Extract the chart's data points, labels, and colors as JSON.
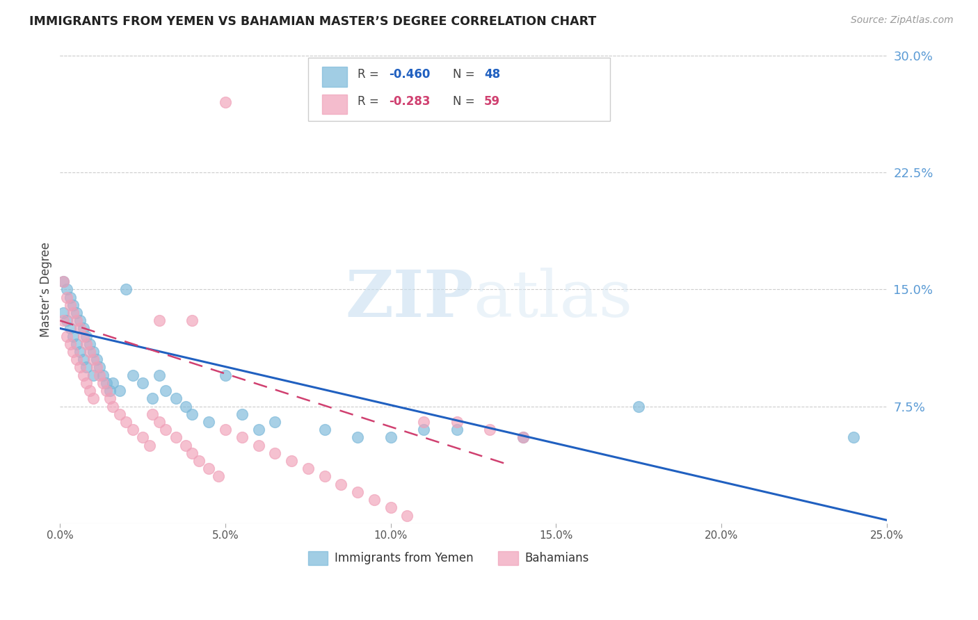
{
  "title": "IMMIGRANTS FROM YEMEN VS BAHAMIAN MASTER’S DEGREE CORRELATION CHART",
  "source": "Source: ZipAtlas.com",
  "ylabel": "Master’s Degree",
  "right_yticks": [
    "30.0%",
    "22.5%",
    "15.0%",
    "7.5%"
  ],
  "right_ytick_vals": [
    0.3,
    0.225,
    0.15,
    0.075
  ],
  "xlim": [
    0.0,
    0.25
  ],
  "ylim": [
    0.0,
    0.3
  ],
  "xticks": [
    0.0,
    0.05,
    0.1,
    0.15,
    0.2,
    0.25
  ],
  "xticklabels": [
    "0.0%",
    "5.0%",
    "10.0%",
    "15.0%",
    "20.0%",
    "25.0%"
  ],
  "legend_blue_r": "-0.460",
  "legend_blue_n": "48",
  "legend_pink_r": "-0.283",
  "legend_pink_n": "59",
  "legend_blue_label": "Immigrants from Yemen",
  "legend_pink_label": "Bahamians",
  "blue_color": "#7ab8d9",
  "pink_color": "#f0a0b8",
  "trend_blue_color": "#2060c0",
  "trend_pink_color": "#d04070",
  "blue_scatter_x": [
    0.001,
    0.001,
    0.002,
    0.002,
    0.003,
    0.003,
    0.004,
    0.004,
    0.005,
    0.005,
    0.006,
    0.006,
    0.007,
    0.007,
    0.008,
    0.008,
    0.009,
    0.01,
    0.01,
    0.011,
    0.012,
    0.013,
    0.014,
    0.015,
    0.016,
    0.018,
    0.02,
    0.022,
    0.025,
    0.028,
    0.03,
    0.032,
    0.035,
    0.038,
    0.04,
    0.045,
    0.05,
    0.055,
    0.06,
    0.065,
    0.08,
    0.09,
    0.1,
    0.11,
    0.12,
    0.14,
    0.175,
    0.24
  ],
  "blue_scatter_y": [
    0.155,
    0.135,
    0.15,
    0.13,
    0.145,
    0.125,
    0.14,
    0.12,
    0.135,
    0.115,
    0.13,
    0.11,
    0.125,
    0.105,
    0.12,
    0.1,
    0.115,
    0.11,
    0.095,
    0.105,
    0.1,
    0.095,
    0.09,
    0.085,
    0.09,
    0.085,
    0.15,
    0.095,
    0.09,
    0.08,
    0.095,
    0.085,
    0.08,
    0.075,
    0.07,
    0.065,
    0.095,
    0.07,
    0.06,
    0.065,
    0.06,
    0.055,
    0.055,
    0.06,
    0.06,
    0.055,
    0.075,
    0.055
  ],
  "pink_scatter_x": [
    0.001,
    0.001,
    0.002,
    0.002,
    0.003,
    0.003,
    0.004,
    0.004,
    0.005,
    0.005,
    0.006,
    0.006,
    0.007,
    0.007,
    0.008,
    0.008,
    0.009,
    0.009,
    0.01,
    0.01,
    0.011,
    0.012,
    0.013,
    0.014,
    0.015,
    0.016,
    0.018,
    0.02,
    0.022,
    0.025,
    0.027,
    0.028,
    0.03,
    0.032,
    0.035,
    0.038,
    0.04,
    0.042,
    0.045,
    0.048,
    0.05,
    0.055,
    0.06,
    0.065,
    0.07,
    0.075,
    0.08,
    0.085,
    0.09,
    0.095,
    0.1,
    0.105,
    0.11,
    0.12,
    0.13,
    0.14,
    0.03,
    0.04,
    0.05
  ],
  "pink_scatter_y": [
    0.155,
    0.13,
    0.145,
    0.12,
    0.14,
    0.115,
    0.135,
    0.11,
    0.13,
    0.105,
    0.125,
    0.1,
    0.12,
    0.095,
    0.115,
    0.09,
    0.11,
    0.085,
    0.105,
    0.08,
    0.1,
    0.095,
    0.09,
    0.085,
    0.08,
    0.075,
    0.07,
    0.065,
    0.06,
    0.055,
    0.05,
    0.07,
    0.065,
    0.06,
    0.055,
    0.05,
    0.045,
    0.04,
    0.035,
    0.03,
    0.06,
    0.055,
    0.05,
    0.045,
    0.04,
    0.035,
    0.03,
    0.025,
    0.02,
    0.015,
    0.01,
    0.005,
    0.065,
    0.065,
    0.06,
    0.055,
    0.13,
    0.13,
    0.27
  ],
  "watermark_zip": "ZIP",
  "watermark_atlas": "atlas",
  "background_color": "#ffffff",
  "grid_color": "#cccccc"
}
